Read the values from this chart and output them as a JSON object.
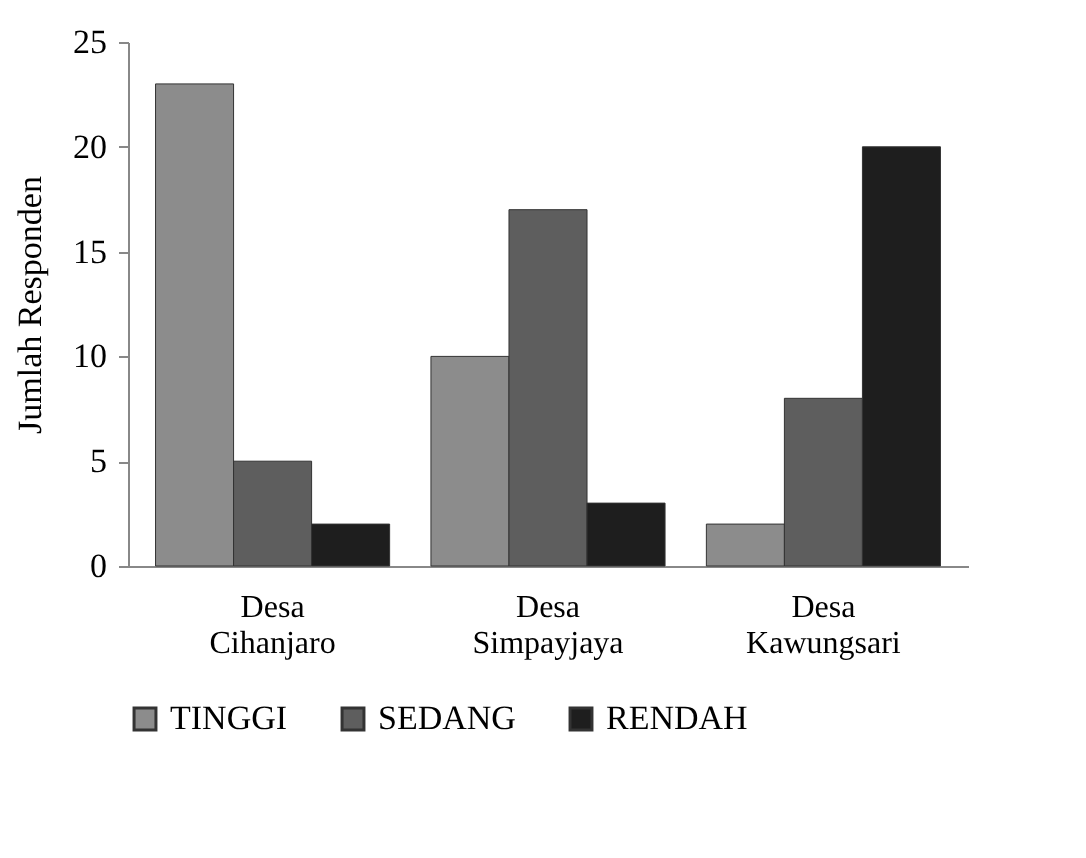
{
  "chart_data": {
    "type": "bar",
    "ylabel": "Jumlah Responden",
    "categories": [
      "Desa Cihanjaro",
      "Desa Simpayjaya",
      "Desa Kawungsari"
    ],
    "series": [
      {
        "name": "TINGGI",
        "color": "#8c8c8c",
        "values": [
          23,
          10,
          2
        ]
      },
      {
        "name": "SEDANG",
        "color": "#5e5e5e",
        "values": [
          5,
          17,
          8
        ]
      },
      {
        "name": "RENDAH",
        "color": "#1e1e1e",
        "values": [
          2,
          3,
          20
        ]
      }
    ],
    "ylim": [
      0,
      25
    ],
    "yticks": [
      0,
      5,
      10,
      15,
      20,
      25
    ],
    "legend": "bottom"
  }
}
